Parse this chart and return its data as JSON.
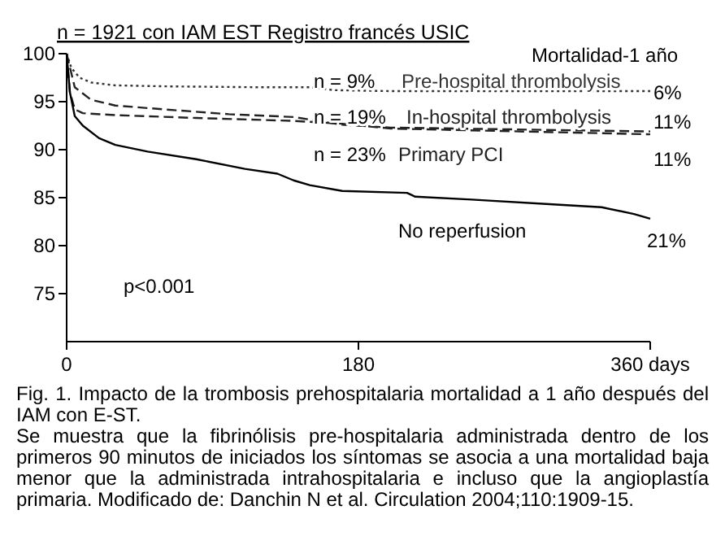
{
  "chart_data": {
    "type": "line",
    "title": "n = 1921 con IAM EST Registro francés USIC",
    "xlim": [
      0,
      360
    ],
    "ylim": [
      70,
      100
    ],
    "xticks": [
      0,
      180,
      {
        "value": 360,
        "label": "360 days"
      }
    ],
    "yticks": [
      75,
      80,
      85,
      90,
      95,
      100
    ],
    "grid": false,
    "marker": "none",
    "series": [
      {
        "name": "Pre-hospital thrombolysis",
        "color": "#333333",
        "line_style": "dotted",
        "x": [
          0,
          3,
          8,
          15,
          30,
          60,
          120,
          150,
          165,
          200,
          360
        ],
        "values": [
          100,
          98.5,
          97.5,
          97,
          96.7,
          96.6,
          96.5,
          96.5,
          96.2,
          96.1,
          96.1
        ]
      },
      {
        "name": "In-hospital thrombolysis",
        "color": "#222222",
        "line_style": "dashed",
        "x": [
          0,
          5,
          15,
          30,
          60,
          100,
          140,
          170,
          200,
          360
        ],
        "values": [
          100,
          96.5,
          95.2,
          94.6,
          94.2,
          93.7,
          93.4,
          92.6,
          92.3,
          91.9
        ]
      },
      {
        "name": "Primary PCI",
        "color": "#222222",
        "line_style": "dashed",
        "x": [
          0,
          2,
          5,
          10,
          30,
          80,
          140,
          170,
          200,
          360
        ],
        "values": [
          100,
          96,
          94.2,
          93.8,
          93.6,
          93.3,
          93,
          92.7,
          92.2,
          91.6
        ]
      },
      {
        "name": "No reperfusion",
        "color": "#000000",
        "line_style": "solid",
        "x": [
          0,
          2,
          5,
          10,
          20,
          30,
          50,
          80,
          110,
          130,
          140,
          150,
          170,
          210,
          215,
          250,
          300,
          330,
          350,
          360
        ],
        "values": [
          100,
          96,
          93.5,
          92.5,
          91.2,
          90.5,
          89.8,
          89,
          88,
          87.5,
          86.8,
          86.3,
          85.7,
          85.5,
          85.1,
          84.8,
          84.3,
          84,
          83.3,
          82.8
        ]
      }
    ],
    "annotations": [
      "Mortalidad-1 año",
      "n = 9%",
      "6%",
      "n = 19%",
      "11%",
      "n = 23%",
      "11%",
      "21%",
      "p<0.001",
      "Fig. 1. Impacto de la trombosis prehospitalaria mortalidad a 1 año después del IAM con E-ST.",
      "Se muestra que la fibrinólisis pre-hospitalaria administrada dentro de los primeros 90 minutos de iniciados los síntomas se asocia a una mortalidad baja menor que la administrada intrahospitalaria e incluso que la angioplastía primaria. Modificado de: Danchin N et al. Circulation 2004;110:1909-15."
    ]
  }
}
